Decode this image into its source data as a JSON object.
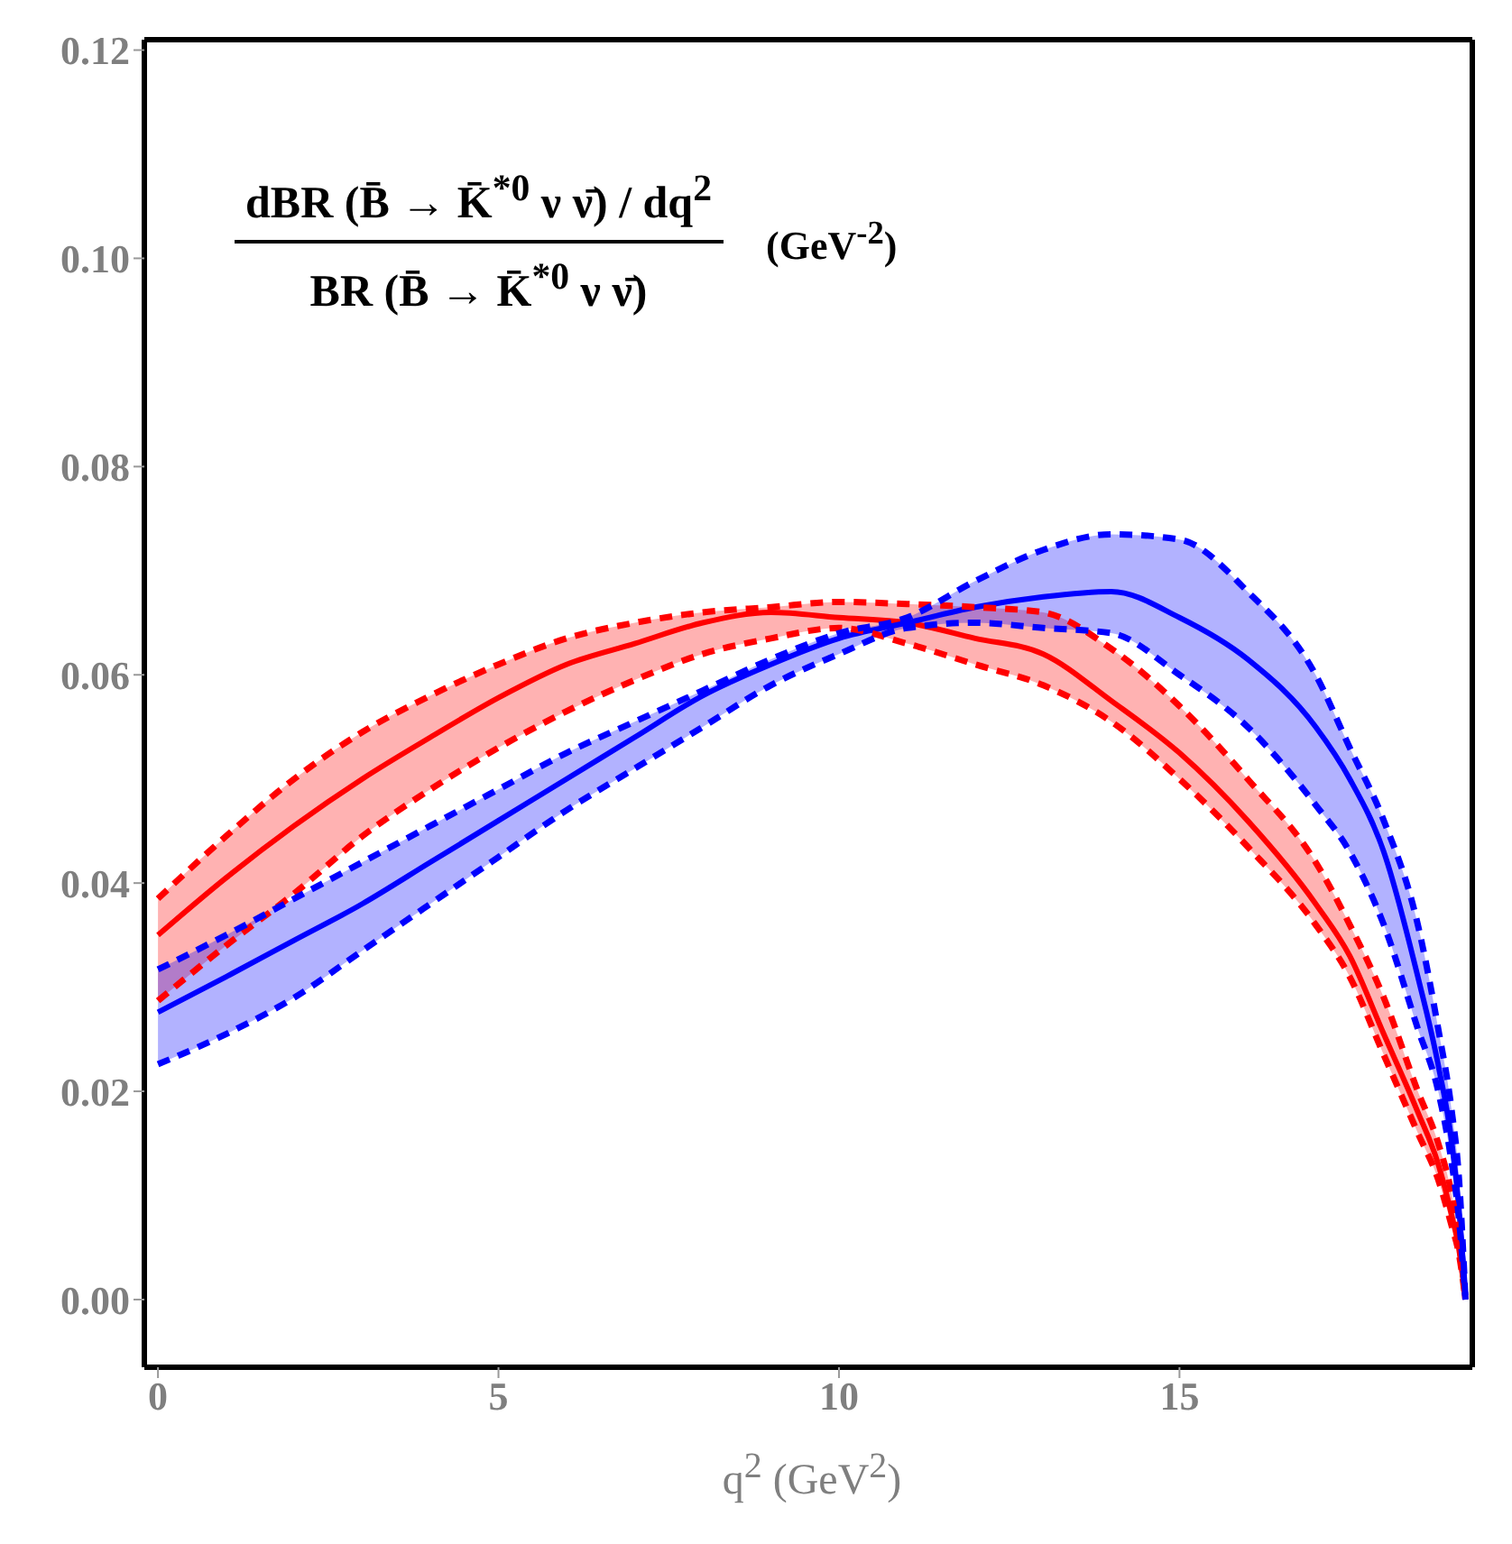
{
  "chart_data": {
    "type": "line",
    "xlabel": "q$^{2}$  (GeV$^{2}$)",
    "annotations": [
      "dBR (B̄ → K̄$^{*0}$ ν ν̄) / dq$^{2}$",
      "BR (B̄ → K̄$^{*0}$ ν ν̄)",
      "(GeV$^{-2}$)"
    ],
    "x": [
      0,
      1,
      2,
      3,
      4,
      5,
      6,
      7,
      8,
      9,
      10,
      11,
      12,
      13,
      14,
      15,
      16,
      17,
      17.5,
      18,
      18.5,
      18.8,
      19,
      19.1,
      19.2
    ],
    "series": [
      {
        "color": "#ff0000",
        "values": [
          0.035,
          0.0405,
          0.0455,
          0.05,
          0.054,
          0.0578,
          0.061,
          0.063,
          0.065,
          0.066,
          0.0655,
          0.065,
          0.0635,
          0.062,
          0.0575,
          0.0525,
          0.046,
          0.038,
          0.033,
          0.0255,
          0.018,
          0.013,
          0.008,
          0.005,
          0
        ],
        "lower": [
          0.0287,
          0.034,
          0.039,
          0.0445,
          0.049,
          0.053,
          0.0565,
          0.0595,
          0.062,
          0.0635,
          0.0645,
          0.063,
          0.061,
          0.059,
          0.0555,
          0.05,
          0.0435,
          0.036,
          0.031,
          0.0235,
          0.016,
          0.0115,
          0.007,
          0.0045,
          0
        ],
        "upper": [
          0.0385,
          0.0445,
          0.05,
          0.0545,
          0.058,
          0.061,
          0.0635,
          0.065,
          0.066,
          0.0665,
          0.067,
          0.0668,
          0.0665,
          0.066,
          0.0625,
          0.057,
          0.05,
          0.042,
          0.036,
          0.029,
          0.02,
          0.015,
          0.01,
          0.006,
          0
        ]
      },
      {
        "color": "#0000ff",
        "values": [
          0.0276,
          0.031,
          0.0345,
          0.038,
          0.042,
          0.046,
          0.05,
          0.054,
          0.058,
          0.061,
          0.0635,
          0.065,
          0.0665,
          0.0675,
          0.068,
          0.0655,
          0.0615,
          0.055,
          0.05,
          0.043,
          0.031,
          0.0225,
          0.015,
          0.009,
          0
        ],
        "lower": [
          0.0226,
          0.0255,
          0.029,
          0.0335,
          0.038,
          0.0425,
          0.047,
          0.051,
          0.055,
          0.059,
          0.062,
          0.0645,
          0.065,
          0.0645,
          0.064,
          0.06,
          0.055,
          0.0475,
          0.043,
          0.036,
          0.026,
          0.02,
          0.013,
          0.008,
          0
        ],
        "upper": [
          0.0317,
          0.035,
          0.0385,
          0.042,
          0.0455,
          0.049,
          0.0525,
          0.0555,
          0.0585,
          0.0615,
          0.064,
          0.0655,
          0.069,
          0.072,
          0.0735,
          0.073,
          0.068,
          0.06,
          0.053,
          0.046,
          0.036,
          0.026,
          0.018,
          0.012,
          0
        ]
      },
      {
        "color": "#ff0000",
        "line_style": "dashed",
        "values": [
          0.0287,
          0.034,
          0.039,
          0.0445,
          0.049,
          0.053,
          0.0565,
          0.0595,
          0.062,
          0.0635,
          0.0645,
          0.063,
          0.061,
          0.059,
          0.0555,
          0.05,
          0.0435,
          0.036,
          0.031,
          0.0235,
          0.016,
          0.0115,
          0.007,
          0.0045,
          0
        ]
      },
      {
        "color": "#ff0000",
        "line_style": "dashed",
        "values": [
          0.0385,
          0.0445,
          0.05,
          0.0545,
          0.058,
          0.061,
          0.0635,
          0.065,
          0.066,
          0.0665,
          0.067,
          0.0668,
          0.0665,
          0.066,
          0.0625,
          0.057,
          0.05,
          0.042,
          0.036,
          0.029,
          0.02,
          0.015,
          0.01,
          0.006,
          0
        ]
      },
      {
        "color": "#0000ff",
        "line_style": "dashed",
        "values": [
          0.0226,
          0.0255,
          0.029,
          0.0335,
          0.038,
          0.0425,
          0.047,
          0.051,
          0.055,
          0.059,
          0.062,
          0.0645,
          0.065,
          0.0645,
          0.064,
          0.06,
          0.055,
          0.0475,
          0.043,
          0.036,
          0.026,
          0.02,
          0.013,
          0.008,
          0
        ]
      },
      {
        "color": "#0000ff",
        "line_style": "dashed",
        "values": [
          0.0317,
          0.035,
          0.0385,
          0.042,
          0.0455,
          0.049,
          0.0525,
          0.0555,
          0.0585,
          0.0615,
          0.064,
          0.0655,
          0.069,
          0.072,
          0.0735,
          0.073,
          0.068,
          0.06,
          0.053,
          0.046,
          0.036,
          0.026,
          0.018,
          0.012,
          0
        ]
      }
    ],
    "xlim": [
      -0.2,
      19.3
    ],
    "xticks": [
      0,
      5,
      10,
      15
    ],
    "ylim": [
      -0.0065,
      0.121
    ],
    "yticks": [
      {
        "value": 0,
        "label": "0.00"
      },
      {
        "value": 0.02,
        "label": "0.02"
      },
      {
        "value": 0.04,
        "label": "0.04"
      },
      {
        "value": 0.06,
        "label": "0.06"
      },
      {
        "value": 0.08,
        "label": "0.08"
      },
      {
        "value": 0.1,
        "label": "0.10"
      },
      {
        "value": 0.12,
        "label": "0.12"
      }
    ],
    "grid": false,
    "legend": false,
    "marker": "none",
    "line_style": "solid"
  }
}
